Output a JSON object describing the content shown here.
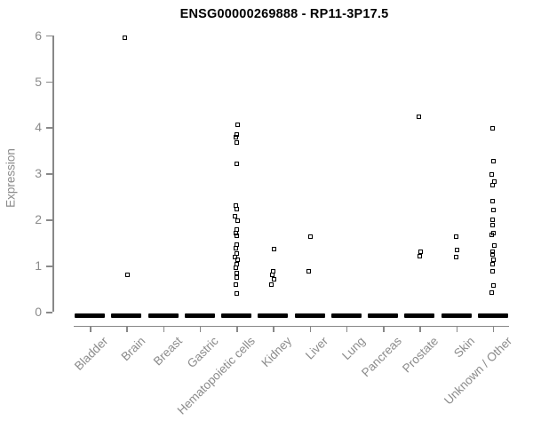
{
  "chart_data": {
    "type": "scatter",
    "title": "ENSG00000269888 - RP11-3P17.5",
    "ylabel": "Expression",
    "ylim": [
      0,
      6
    ],
    "yticks": [
      0,
      1,
      2,
      3,
      4,
      5,
      6
    ],
    "legend": "none",
    "grid": false,
    "marker": "open-square",
    "marker_color": "#000000",
    "axis_color": "#888888",
    "label_color": "#8b8b8b",
    "categories": [
      "Bladder",
      "Brain",
      "Breast",
      "Gastric",
      "Hematopoietic cells",
      "Kidney",
      "Liver",
      "Lung",
      "Pancreas",
      "Prostate",
      "Skin",
      "Unknown / Other"
    ],
    "series": [
      {
        "category": "Bladder",
        "values": [],
        "zero_cluster": true
      },
      {
        "category": "Brain",
        "values": [
          5.95,
          0.8
        ],
        "zero_cluster": true
      },
      {
        "category": "Breast",
        "values": [],
        "zero_cluster": true
      },
      {
        "category": "Gastric",
        "values": [],
        "zero_cluster": true
      },
      {
        "category": "Hematopoietic cells",
        "values": [
          4.05,
          3.85,
          3.78,
          3.68,
          3.2,
          2.31,
          2.22,
          2.08,
          1.98,
          1.79,
          1.7,
          1.64,
          1.45,
          1.37,
          1.27,
          1.19,
          1.12,
          1.04,
          0.96,
          0.83,
          0.75,
          0.58,
          0.39
        ],
        "zero_cluster": true
      },
      {
        "category": "Kidney",
        "values": [
          1.35,
          0.87,
          0.79,
          0.71,
          0.59
        ],
        "zero_cluster": true
      },
      {
        "category": "Liver",
        "values": [
          1.62,
          0.88
        ],
        "zero_cluster": true
      },
      {
        "category": "Lung",
        "values": [],
        "zero_cluster": true
      },
      {
        "category": "Pancreas",
        "values": [],
        "zero_cluster": true
      },
      {
        "category": "Prostate",
        "values": [
          4.22,
          1.31,
          1.21
        ],
        "zero_cluster": true
      },
      {
        "category": "Skin",
        "values": [
          1.62,
          1.33,
          1.19
        ],
        "zero_cluster": true
      },
      {
        "category": "Unknown / Other",
        "values": [
          3.98,
          3.26,
          2.97,
          2.83,
          2.75,
          2.39,
          2.2,
          2.0,
          1.87,
          1.71,
          1.66,
          1.43,
          1.31,
          1.25,
          1.12,
          1.03,
          0.88,
          0.56,
          0.42
        ],
        "zero_cluster": true
      }
    ]
  }
}
